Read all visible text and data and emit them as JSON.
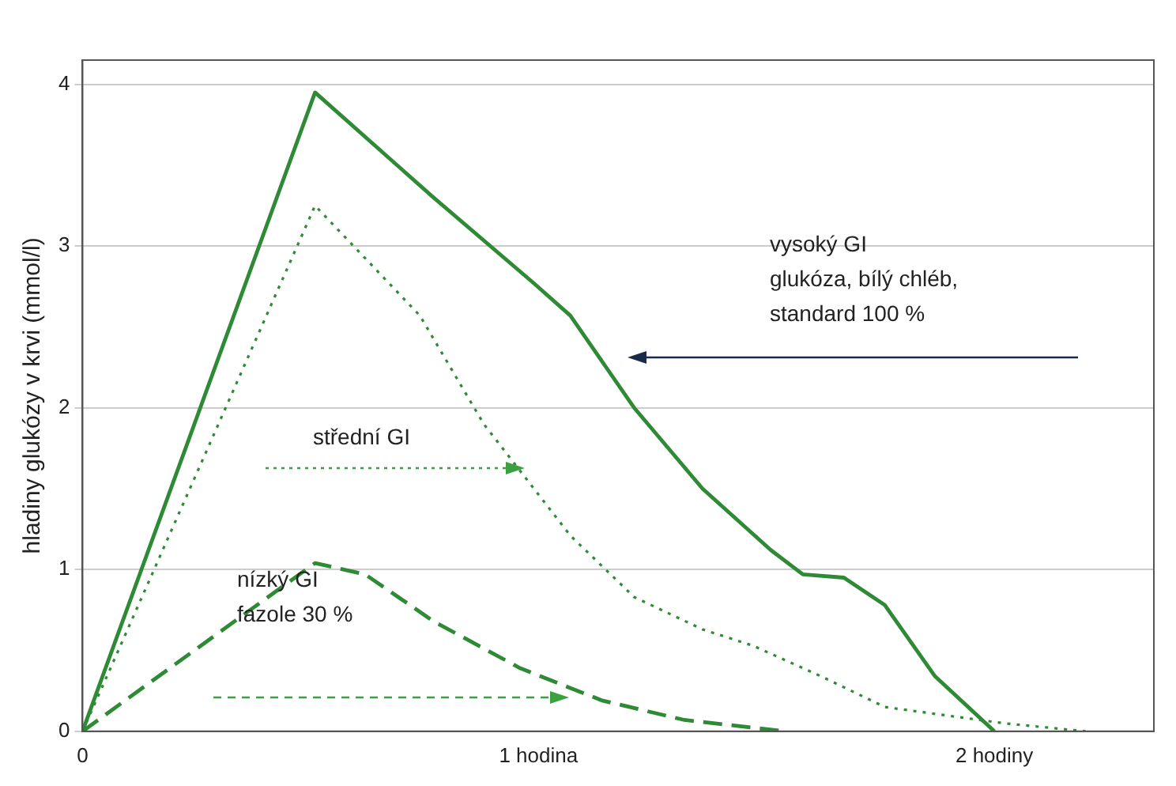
{
  "chart_data": {
    "type": "line",
    "ylabel": "hladiny glukózy v krvi (mmol/l)",
    "xlim": [
      0,
      2.35
    ],
    "ylim": [
      0,
      4.15
    ],
    "xticks": [
      0,
      {
        "value": 1,
        "label": "1 hodina"
      },
      {
        "value": 2,
        "label": "2 hodiny"
      }
    ],
    "yticks": [
      0,
      1,
      2,
      3,
      4
    ],
    "grid": "y",
    "marker": "none",
    "series": [
      {
        "color": "#2f8a35",
        "line_style": "solid",
        "x": [
          0,
          0.51,
          0.77,
          0.99,
          1.07,
          1.21,
          1.36,
          1.51,
          1.58,
          1.67,
          1.76,
          1.87,
          2.0
        ],
        "values": [
          0,
          3.95,
          3.3,
          2.77,
          2.57,
          2.0,
          1.5,
          1.12,
          0.97,
          0.95,
          0.78,
          0.34,
          0
        ]
      },
      {
        "color": "#2f8a35",
        "line_style": "dotted",
        "x": [
          0,
          0.51,
          0.74,
          0.88,
          1.07,
          1.21,
          1.36,
          1.47,
          1.62,
          1.76,
          2.02,
          2.2
        ],
        "values": [
          0,
          3.25,
          2.57,
          1.9,
          1.21,
          0.83,
          0.63,
          0.53,
          0.34,
          0.15,
          0.05,
          0
        ]
      },
      {
        "color": "#2f8a35",
        "line_style": "dashed",
        "x": [
          0,
          0.51,
          0.62,
          0.77,
          0.96,
          1.14,
          1.32,
          1.54
        ],
        "values": [
          0,
          1.04,
          0.97,
          0.68,
          0.39,
          0.19,
          0.07,
          0
        ]
      }
    ],
    "annotations": [
      "vysoký GI\nglukóza, bílý chléb,\nstandard 100 %",
      "střední GI",
      "nízký GI\nfazole 30 %"
    ]
  }
}
